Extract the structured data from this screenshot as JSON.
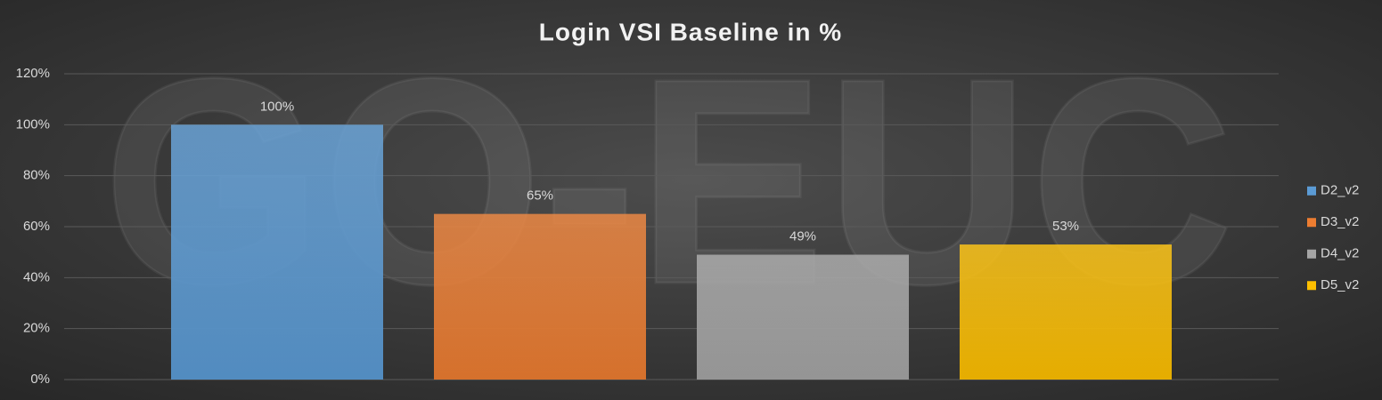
{
  "chart_data": {
    "type": "bar",
    "title": "Login VSI Baseline in %",
    "watermark": "GO-EUC",
    "categories": [
      null
    ],
    "series": [
      {
        "name": "D2_v2",
        "color": "#5b9bd5",
        "values": [
          100
        ],
        "value_labels": [
          "100%"
        ]
      },
      {
        "name": "D3_v2",
        "color": "#ed7d31",
        "values": [
          65
        ],
        "value_labels": [
          "65%"
        ]
      },
      {
        "name": "D4_v2",
        "color": "#a5a5a5",
        "values": [
          49
        ],
        "value_labels": [
          "49%"
        ]
      },
      {
        "name": "D5_v2",
        "color": "#ffc000",
        "values": [
          53
        ],
        "value_labels": [
          "53%"
        ]
      }
    ],
    "ylim": [
      0,
      120
    ],
    "yticks": [
      {
        "value": 0,
        "label": "0%"
      },
      {
        "value": 20,
        "label": "20%"
      },
      {
        "value": 40,
        "label": "40%"
      },
      {
        "value": 60,
        "label": "60%"
      },
      {
        "value": 80,
        "label": "80%"
      },
      {
        "value": 100,
        "label": "100%"
      },
      {
        "value": 120,
        "label": "120%"
      }
    ],
    "grid": true,
    "legend": "right"
  }
}
